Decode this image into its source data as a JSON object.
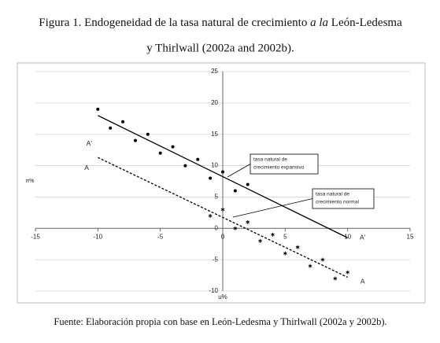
{
  "chart_data": {
    "type": "scatter",
    "title": {
      "before": "Figura 1. Endogeneidad de la tasa natural de crecimiento",
      "italic": "a la",
      "after": "León-Ledesma",
      "line2": "y Thirlwall (2002a and 2002b)."
    },
    "xlabel": "u%",
    "ylabel": "π%",
    "xlim": [
      -15,
      15
    ],
    "ylim": [
      -10,
      25
    ],
    "xticks": [
      -15,
      -10,
      -5,
      0,
      5,
      10,
      15
    ],
    "yticks": [
      -10,
      -5,
      0,
      5,
      10,
      15,
      20,
      25
    ],
    "grid": true,
    "series": [
      {
        "marker": "dot",
        "color": "#000000",
        "x": [
          -10,
          -9,
          -8,
          -7,
          -6,
          -5,
          -4,
          -3,
          -2,
          -1,
          0,
          1,
          2
        ],
        "values": [
          19,
          16,
          17,
          14,
          15,
          12,
          13,
          10,
          11,
          8,
          9,
          6,
          7
        ]
      },
      {
        "marker": "asterisk",
        "color": "#000000",
        "x": [
          -1,
          0,
          1,
          2,
          3,
          4,
          5,
          6,
          7,
          8,
          9,
          10
        ],
        "values": [
          2,
          3,
          0,
          1,
          -2,
          -1,
          -4,
          -3,
          -6,
          -5,
          -8,
          -7
        ]
      },
      {
        "marker": "solid-line",
        "color": "#000000",
        "x": [
          -10,
          10
        ],
        "values": [
          18,
          -1.5
        ]
      },
      {
        "marker": "dashed-line",
        "color": "#000000",
        "x": [
          -10,
          10
        ],
        "values": [
          11.3,
          -7.8
        ]
      }
    ],
    "line_labels": [
      "A'",
      "A",
      "A'",
      "A"
    ],
    "annotations": [
      {
        "line1": "tasa natural de",
        "line2": "crecimiento expansivo"
      },
      {
        "line1": "tasa natural de",
        "line2": "crecimiento normal"
      }
    ],
    "source": "Fuente: Elaboración propia con base en León-Ledesma y Thirlwall (2002a y 2002b)."
  }
}
